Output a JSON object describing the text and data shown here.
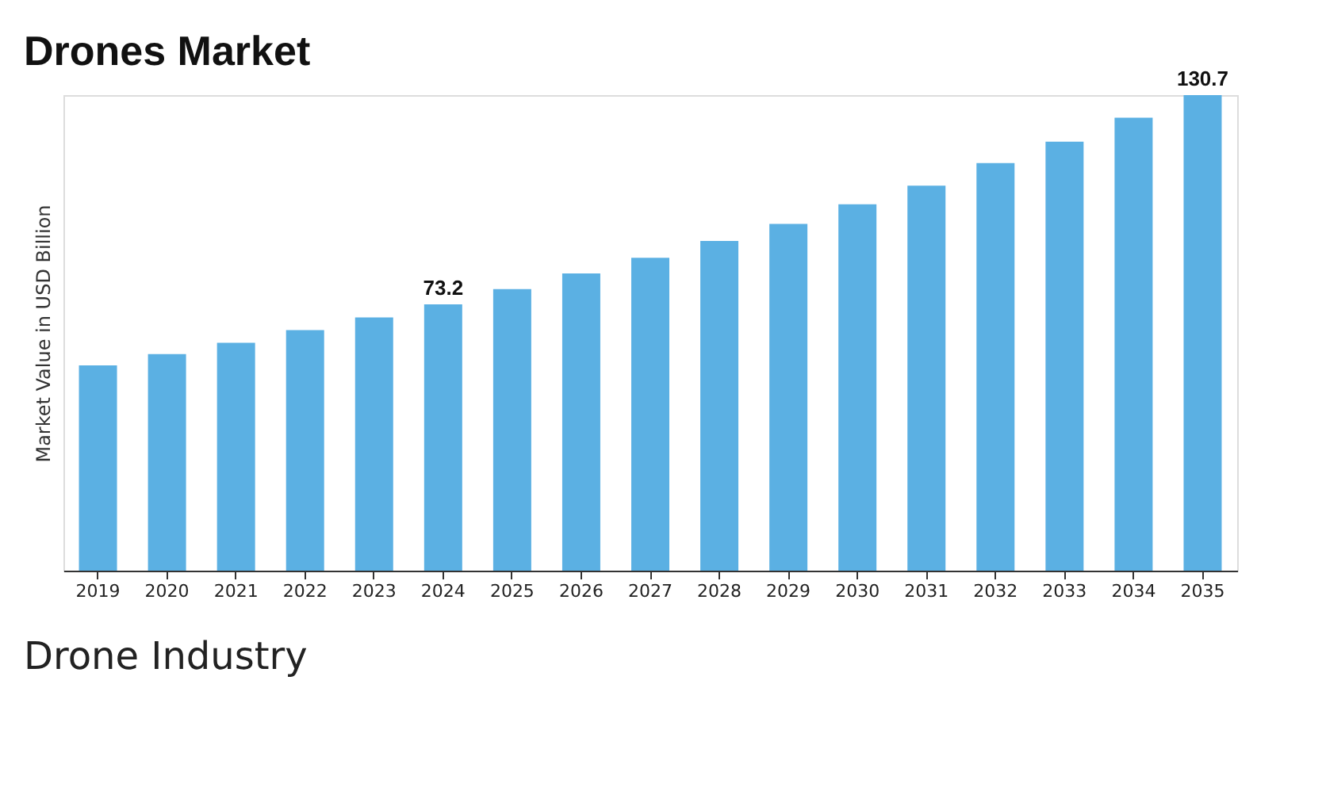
{
  "chart_data": {
    "type": "bar",
    "title": "Drones Market",
    "ylabel": "Market Value in USD Billion",
    "categories": [
      "2019",
      "2020",
      "2021",
      "2022",
      "2023",
      "2024",
      "2025",
      "2026",
      "2027",
      "2028",
      "2029",
      "2030",
      "2031",
      "2032",
      "2033",
      "2034",
      "2035"
    ],
    "values": [
      56.4,
      59.5,
      62.6,
      66.1,
      69.6,
      73.2,
      77.4,
      81.7,
      86.0,
      90.6,
      95.3,
      100.7,
      105.8,
      112.0,
      117.9,
      124.5,
      130.7
    ],
    "value_labels": [
      null,
      null,
      null,
      null,
      null,
      "73.2",
      null,
      null,
      null,
      null,
      null,
      null,
      null,
      null,
      null,
      null,
      "130.7"
    ],
    "color": "#5bb0e3",
    "annotations": [
      "Drone Industry"
    ],
    "grid": false
  }
}
